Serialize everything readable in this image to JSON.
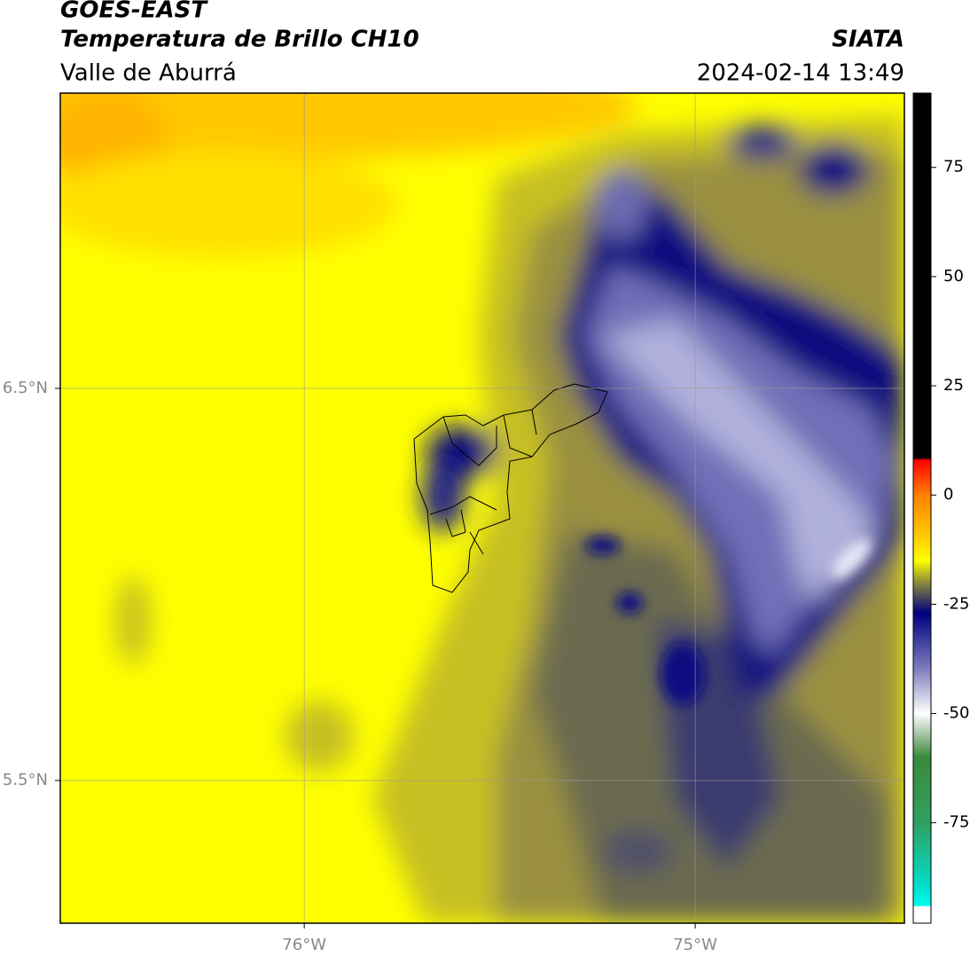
{
  "header": {
    "satellite": "GOES-EAST",
    "product": "Temperatura de Brillo CH10",
    "region": "Valle de Aburrá",
    "source": "SIATA",
    "datetime": "2024-02-14 13:49"
  },
  "map": {
    "xlim": [
      -76.624,
      -74.465
    ],
    "ylim": [
      5.136,
      7.253
    ],
    "xticks": [
      {
        "value": -76,
        "label": "76°W"
      },
      {
        "value": -75,
        "label": "75°W"
      }
    ],
    "yticks": [
      {
        "value": 6.5,
        "label": "6.5°N"
      },
      {
        "value": 5.5,
        "label": "5.5°N"
      }
    ],
    "grid": true
  },
  "colorbar": {
    "lim": [
      -98,
      92
    ],
    "ticks": [
      75,
      50,
      25,
      0,
      -25,
      -50,
      -75
    ],
    "stops": [
      {
        "value": 92,
        "color": "#000000"
      },
      {
        "value": 8.5,
        "color": "#000000"
      },
      {
        "value": 8,
        "color": "#ff0000"
      },
      {
        "value": 0,
        "color": "#ff8000"
      },
      {
        "value": -10,
        "color": "#ffd000"
      },
      {
        "value": -15,
        "color": "#ffff00"
      },
      {
        "value": -20,
        "color": "#8a8a3a"
      },
      {
        "value": -27,
        "color": "#000080"
      },
      {
        "value": -40,
        "color": "#8080c0"
      },
      {
        "value": -50,
        "color": "#ffffff"
      },
      {
        "value": -55,
        "color": "#a0c0a0"
      },
      {
        "value": -60,
        "color": "#3a8a3a"
      },
      {
        "value": -75,
        "color": "#30a060"
      },
      {
        "value": -90,
        "color": "#00e0d0"
      },
      {
        "value": -94,
        "color": "#00ffee"
      },
      {
        "value": -94.2,
        "color": "#ffffff"
      },
      {
        "value": -98,
        "color": "#ffffff"
      }
    ]
  }
}
